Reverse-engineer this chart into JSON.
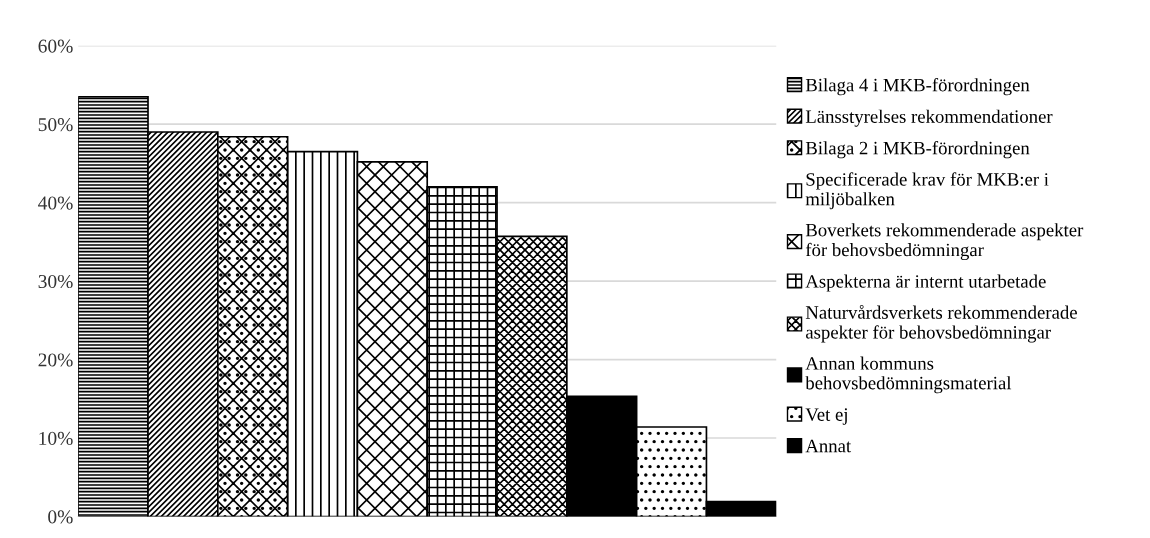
{
  "chart_data": {
    "type": "bar",
    "categories": [
      null,
      null,
      null,
      null,
      null,
      null,
      null,
      null,
      null,
      null
    ],
    "series": [
      {
        "name": "Bilaga 4 i MKB-förordningen",
        "color": "#000000",
        "values": [
          53.5,
          null,
          null,
          null,
          null,
          null,
          null,
          null,
          null,
          null
        ]
      },
      {
        "name": "Länsstyrelses rekommendationer",
        "color": "#000000",
        "values": [
          null,
          49.0,
          null,
          null,
          null,
          null,
          null,
          null,
          null,
          null
        ]
      },
      {
        "name": "Bilaga 2 i MKB-förordningen",
        "color": "#000000",
        "values": [
          null,
          null,
          48.4,
          null,
          null,
          null,
          null,
          null,
          null,
          null
        ]
      },
      {
        "name": "Specificerade krav för MKB:er i miljöbalken",
        "color": "#000000",
        "values": [
          null,
          null,
          null,
          46.5,
          null,
          null,
          null,
          null,
          null,
          null
        ]
      },
      {
        "name": "Boverkets rekommenderade aspekter för behovsbedömningar",
        "color": "#000000",
        "values": [
          null,
          null,
          null,
          null,
          45.2,
          null,
          null,
          null,
          null,
          null
        ]
      },
      {
        "name": "Aspekterna är internt utarbetade",
        "color": "#000000",
        "values": [
          null,
          null,
          null,
          null,
          null,
          42.0,
          null,
          null,
          null,
          null
        ]
      },
      {
        "name": "Naturvårdsverkets rekommenderade aspekter för behovsbedömningar",
        "color": "#000000",
        "values": [
          null,
          null,
          null,
          null,
          null,
          null,
          35.7,
          null,
          null,
          null
        ]
      },
      {
        "name": "Annan kommuns behovsbedömningsmaterial",
        "color": "#000000",
        "values": [
          null,
          null,
          null,
          null,
          null,
          null,
          null,
          15.3,
          null,
          null
        ]
      },
      {
        "name": "Vet ej",
        "color": "#000000",
        "values": [
          null,
          null,
          null,
          null,
          null,
          null,
          null,
          null,
          11.4,
          null
        ]
      },
      {
        "name": "Annat",
        "color": "#000000",
        "values": [
          null,
          null,
          null,
          null,
          null,
          null,
          null,
          null,
          null,
          1.9
        ]
      }
    ],
    "ylim": [
      0,
      60
    ],
    "yticks": [
      {
        "value": 0,
        "label": "0%"
      },
      {
        "value": 10,
        "label": "10%"
      },
      {
        "value": 20,
        "label": "20%"
      },
      {
        "value": 30,
        "label": "30%"
      },
      {
        "value": 40,
        "label": "40%"
      },
      {
        "value": 50,
        "label": "50%"
      },
      {
        "value": 60,
        "label": "60%"
      }
    ],
    "grid": "y",
    "legend": "right"
  }
}
